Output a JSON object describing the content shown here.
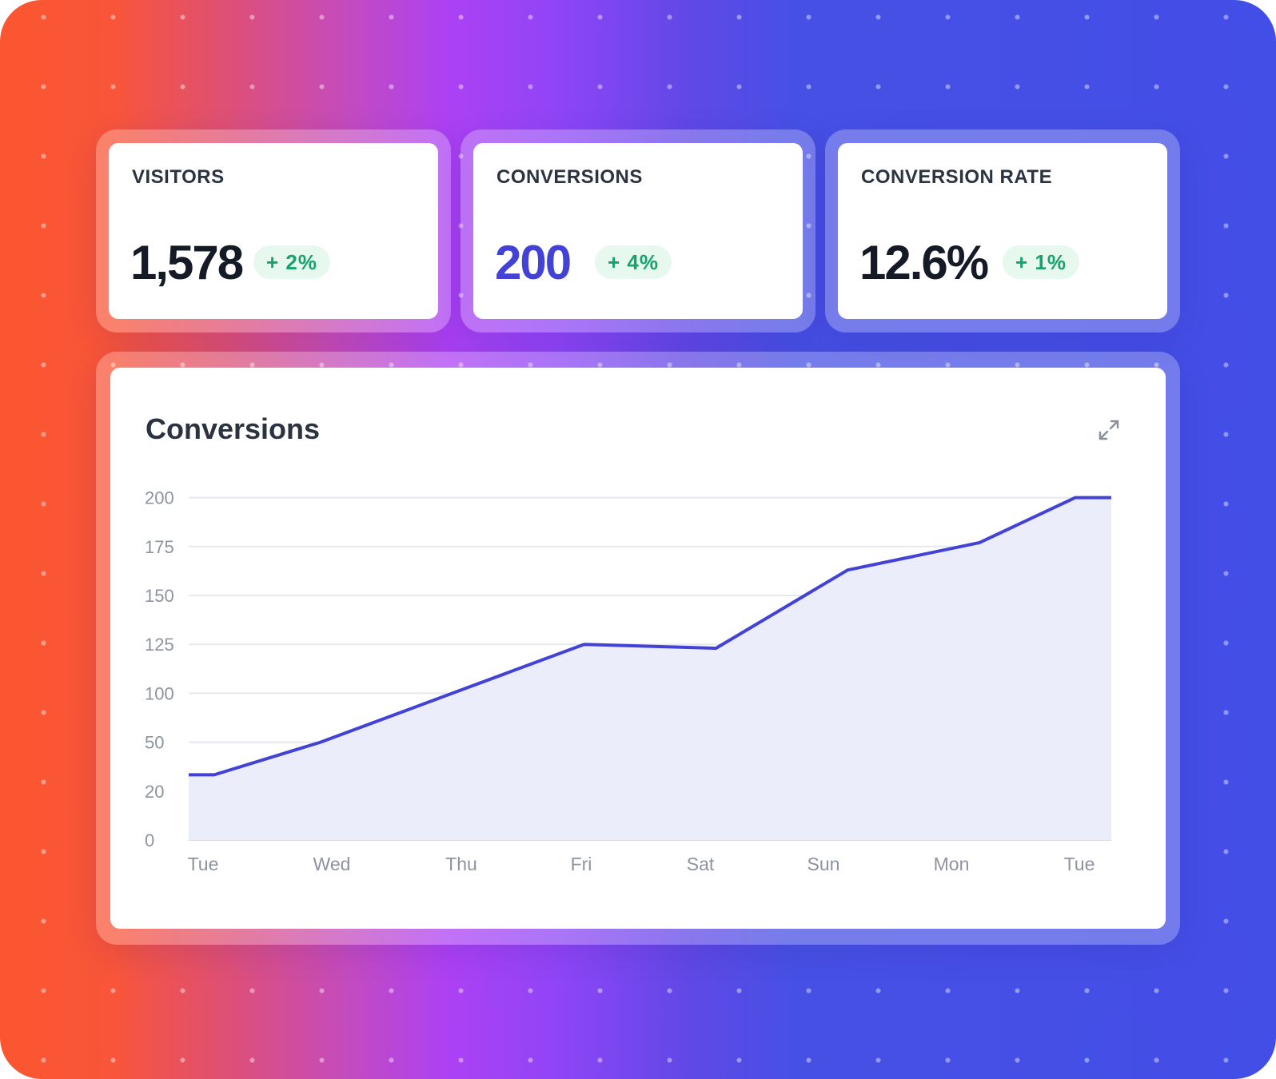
{
  "stats": [
    {
      "label": "VISITORS",
      "value": "1,578",
      "change": "+ 2%"
    },
    {
      "label": "CONVERSIONS",
      "value": "200",
      "change": "+ 4%"
    },
    {
      "label": "CONVERSION RATE",
      "value": "12.6%",
      "change": "+ 1%"
    }
  ],
  "chart": {
    "title": "Conversions",
    "expand_icon": "expand-icon"
  },
  "colors": {
    "accent": "#4342d6",
    "positive": "#16a26b",
    "positive_bg": "#e7f8ee",
    "area_fill": "#ecedfb"
  },
  "chart_data": {
    "type": "area",
    "title": "Conversions",
    "categories": [
      "Tue",
      "Wed",
      "Thu",
      "Fri",
      "Sat",
      "Sun",
      "Mon",
      "Tue"
    ],
    "y_ticks": [
      "0",
      "20",
      "50",
      "100",
      "125",
      "150",
      "175",
      "200"
    ],
    "values": [
      30,
      50,
      100,
      125,
      123,
      163,
      177,
      200
    ],
    "grid": true,
    "legend": "none"
  }
}
